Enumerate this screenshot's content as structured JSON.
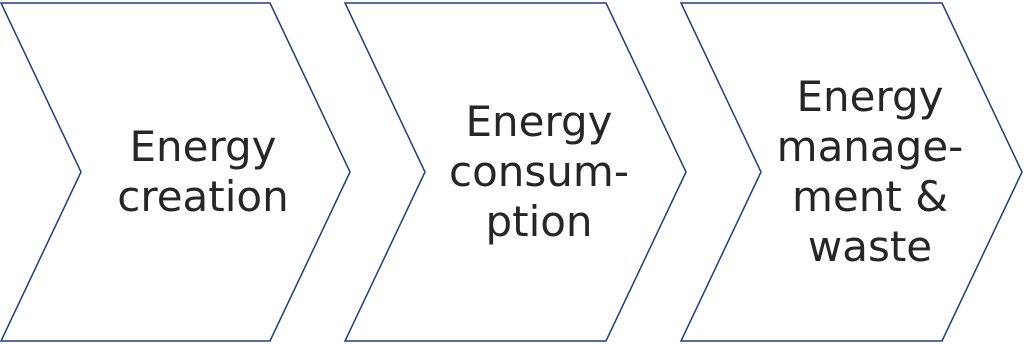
{
  "diagram": {
    "steps": [
      {
        "lines": [
          "Energy",
          "creation"
        ]
      },
      {
        "lines": [
          "Energy",
          "consum-",
          "ption"
        ]
      },
      {
        "lines": [
          "Energy",
          "manage-",
          "ment &",
          "waste"
        ]
      }
    ],
    "colors": {
      "outline": "#1f3f7a",
      "fill": "#ffffff",
      "text": "#262626"
    }
  }
}
